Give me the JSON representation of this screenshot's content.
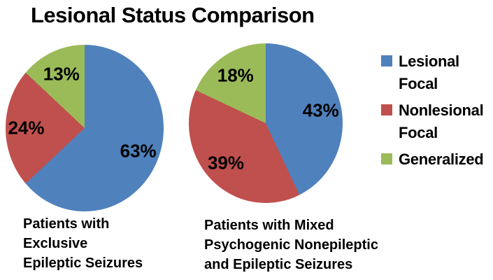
{
  "title": "Lesional Status Comparison",
  "chart_data": {
    "type": "pie",
    "title": "Lesional Status Comparison",
    "legend_position": "right",
    "legend_entries": [
      "Lesional Focal",
      "Nonlesional Focal",
      "Generalized"
    ],
    "colors": {
      "lesional_focal": "#4F81BD",
      "nonlesional_focal": "#C0504D",
      "generalized": "#9BBB59"
    },
    "pies": [
      {
        "caption": "Patients with\nExclusive\nEpileptic Seizures",
        "slices": [
          {
            "name": "Lesional Focal",
            "value": 63,
            "label": "63%",
            "color": "#4F81BD"
          },
          {
            "name": "Nonlesional Focal",
            "value": 24,
            "label": "24%",
            "color": "#C0504D"
          },
          {
            "name": "Generalized",
            "value": 13,
            "label": "13%",
            "color": "#9BBB59"
          }
        ]
      },
      {
        "caption": "Patients with Mixed\nPsychogenic Nonepileptic\nand Epileptic Seizures",
        "slices": [
          {
            "name": "Lesional Focal",
            "value": 43,
            "label": "43%",
            "color": "#4F81BD"
          },
          {
            "name": "Nonlesional Focal",
            "value": 39,
            "label": "39%",
            "color": "#C0504D"
          },
          {
            "name": "Generalized",
            "value": 18,
            "label": "18%",
            "color": "#9BBB59"
          }
        ]
      }
    ]
  },
  "legend": {
    "items": [
      {
        "label": "Lesional\nFocal",
        "color": "#4F81BD"
      },
      {
        "label": "Nonlesional\nFocal",
        "color": "#C0504D"
      },
      {
        "label": "Generalized",
        "color": "#9BBB59"
      }
    ]
  }
}
